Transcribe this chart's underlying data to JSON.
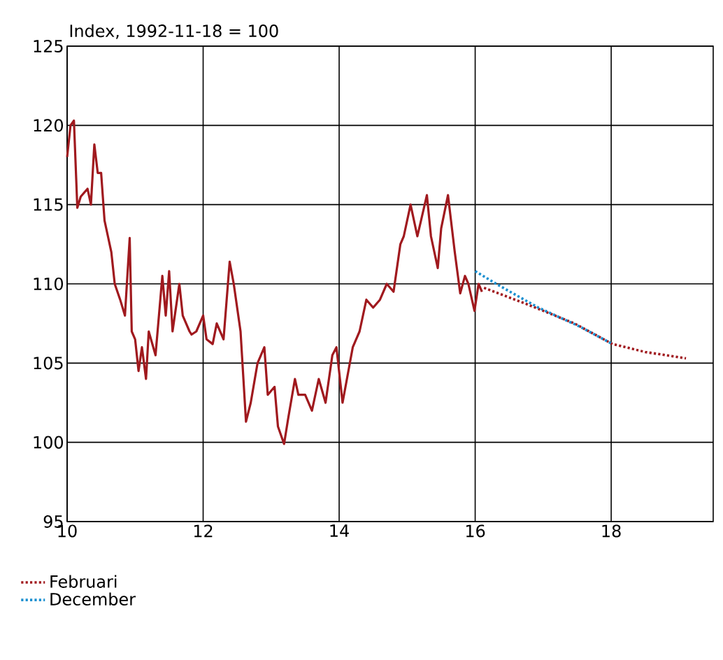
{
  "chart_data": {
    "type": "line",
    "ylabel": "Index, 1992-11-18 = 100",
    "xlim": [
      10,
      19.5
    ],
    "xticks": [
      10,
      12,
      14,
      16,
      18
    ],
    "ylim": [
      95,
      125
    ],
    "yticks": [
      95,
      100,
      105,
      110,
      115,
      120,
      125
    ],
    "grid": true,
    "legend": "bottom left",
    "marker": "none",
    "series": [
      {
        "color": "#a0191e",
        "line_style": "solid",
        "x": [
          10.0,
          10.05,
          10.1,
          10.15,
          10.2,
          10.3,
          10.35,
          10.4,
          10.45,
          10.5,
          10.55,
          10.6,
          10.65,
          10.7,
          10.78,
          10.85,
          10.92,
          10.95,
          11.0,
          11.05,
          11.1,
          11.16,
          11.2,
          11.3,
          11.35,
          11.4,
          11.45,
          11.5,
          11.55,
          11.65,
          11.7,
          11.8,
          11.83,
          11.9,
          12.0,
          12.05,
          12.14,
          12.2,
          12.3,
          12.39,
          12.45,
          12.55,
          12.63,
          12.7,
          12.8,
          12.9,
          12.95,
          13.05,
          13.1,
          13.19,
          13.25,
          13.35,
          13.4,
          13.5,
          13.6,
          13.7,
          13.8,
          13.9,
          13.96,
          14.05,
          14.2,
          14.3,
          14.4,
          14.5,
          14.6,
          14.7,
          14.8,
          14.9,
          14.95,
          15.05,
          15.15,
          15.29,
          15.35,
          15.45,
          15.5,
          15.6,
          15.7,
          15.78,
          15.85,
          15.9,
          15.99,
          16.05,
          16.1
        ],
        "values": [
          118,
          120,
          120.3,
          114.8,
          115.5,
          116,
          115,
          118.8,
          117,
          117,
          114,
          113,
          112,
          110,
          109,
          108,
          112.9,
          107,
          106.5,
          104.5,
          106,
          104,
          107,
          105.5,
          108,
          110.5,
          108,
          110.8,
          107,
          110,
          108,
          107,
          106.8,
          107,
          108,
          106.5,
          106.2,
          107.5,
          106.5,
          111.4,
          110,
          107,
          101.3,
          102.5,
          105,
          106,
          103,
          103.5,
          101,
          99.9,
          101.5,
          104,
          103,
          103,
          102,
          104,
          102.5,
          105.5,
          106,
          102.5,
          106,
          107,
          109,
          108.5,
          109,
          110,
          109.5,
          112.5,
          113,
          115,
          113,
          115.6,
          113,
          111,
          113.5,
          115.6,
          112,
          109.4,
          110.5,
          110,
          108.3,
          110,
          109.5
        ]
      },
      {
        "name": "Februari",
        "color": "#a0191e",
        "line_style": "dotted",
        "x": [
          16.13,
          16.77,
          17.46,
          18.02,
          18.5,
          19.1
        ],
        "values": [
          109.75,
          108.7,
          107.5,
          106.2,
          105.7,
          105.3
        ]
      },
      {
        "name": "December",
        "color": "#1a8fd0",
        "line_style": "dotted",
        "x": [
          16.0,
          16.35,
          16.93,
          17.54,
          18.02
        ],
        "values": [
          110.8,
          109.9,
          108.5,
          107.3,
          106.2
        ]
      }
    ]
  }
}
